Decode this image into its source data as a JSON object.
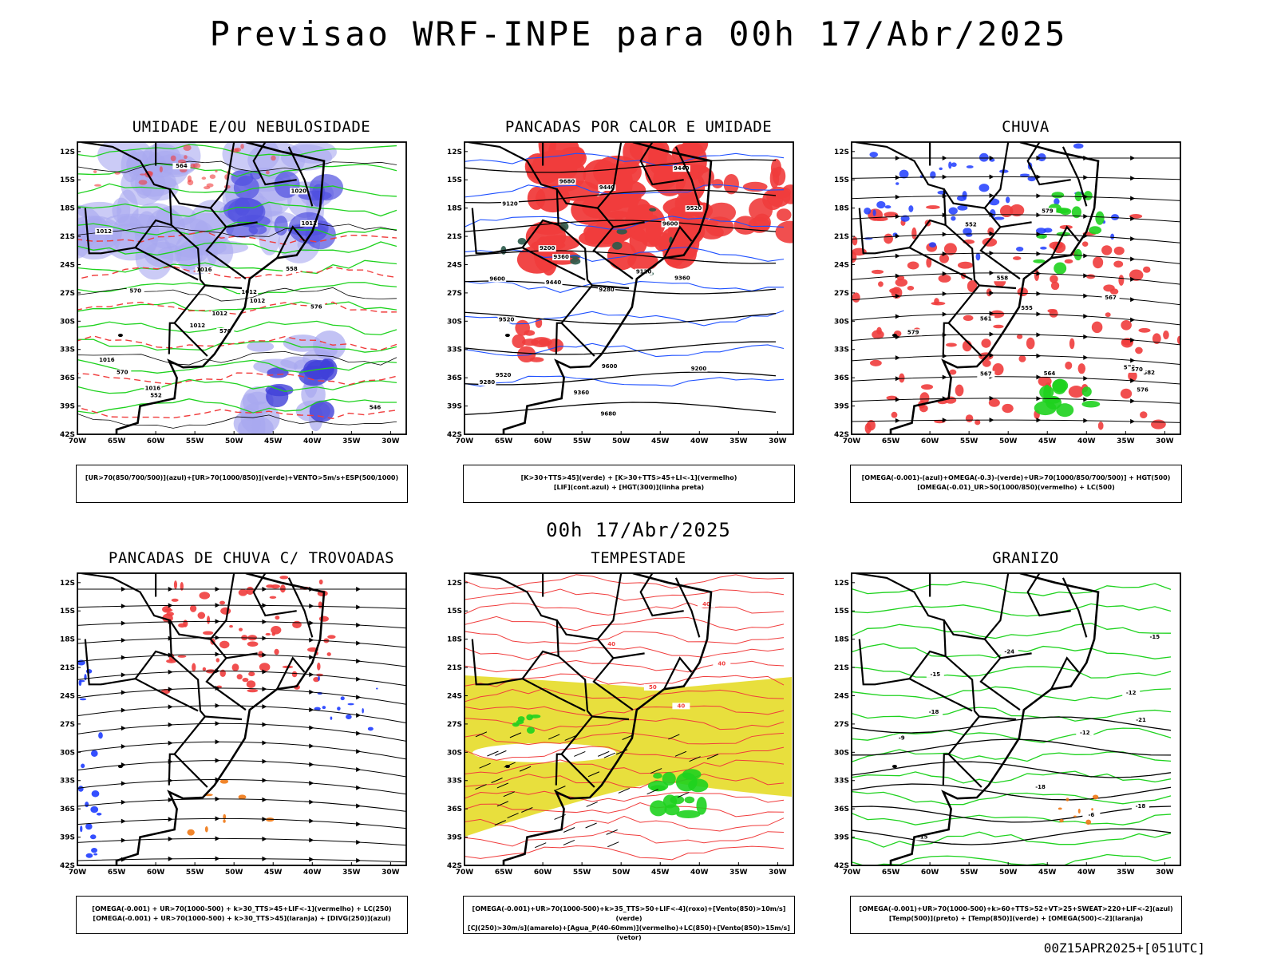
{
  "main_title": "Previsao WRF-INPE  para 00h 17/Abr/2025",
  "mid_title": "00h 17/Abr/2025",
  "footer_stamp": "00Z15APR2025+[051UTC]",
  "axes": {
    "lat_labels": [
      "12S",
      "15S",
      "18S",
      "21S",
      "24S",
      "27S",
      "30S",
      "33S",
      "36S",
      "39S",
      "42S"
    ],
    "lon_labels": [
      "70W",
      "65W",
      "60W",
      "55W",
      "50W",
      "45W",
      "40W",
      "35W",
      "30W"
    ]
  },
  "colors": {
    "blue": "#1e3cff",
    "green": "#1ed21e",
    "red": "#f03c3c",
    "orange": "#f07814",
    "yellow": "#e6dc28",
    "lavender": "#a8a8f0",
    "darkteal": "#2a5a4a"
  },
  "panels": [
    {
      "title": "UMIDADE E/OU NEBULOSIDADE",
      "caption": [
        "[UR>70(850/700/500)](azul)+[UR>70(1000/850)](verde)+VENTO>5m/s+ESP(500/1000)"
      ],
      "contour_labels": [
        "1012",
        "1012",
        "1016",
        "1020",
        "1012",
        "1012",
        "1016",
        "1016",
        "1012",
        "1012",
        "570",
        "570",
        "564",
        "558",
        "552",
        "546",
        "576",
        "570"
      ]
    },
    {
      "title": "PANCADAS POR CALOR E UMIDADE",
      "caption": [
        "[K>30+TTS>45](verde) + [K>30+TTS>45+LI<-1](vermelho)",
        "[LIF](cont.azul) + [HGT(300)](linha preta)"
      ],
      "contour_labels": [
        "9680",
        "9680",
        "9600",
        "9520",
        "9600",
        "9600",
        "9520",
        "9520",
        "9440",
        "9440",
        "9440",
        "9360",
        "9360",
        "9360",
        "9280",
        "9280",
        "9200",
        "9200",
        "9120",
        "9120"
      ]
    },
    {
      "title": "CHUVA",
      "caption": [
        "[OMEGA(-0.001)-(azul)+OMEGA(-0.3)-(verde)+UR>70(1000/850/700/500)] + HGT(500)",
        "[OMEGA(-0.01)_UR>50(1000/850)(vermelho) + LC(500)"
      ],
      "contour_labels": [
        "582",
        "579",
        "579",
        "576",
        "573",
        "570",
        "567",
        "567",
        "564",
        "561",
        "558",
        "555",
        "552"
      ]
    },
    {
      "title": "PANCADAS DE CHUVA C/ TROVOADAS",
      "caption": [
        "[OMEGA(-0.001) + UR>70(1000-500) + k>30_TTS>45+LIF<-1](vermelho) + LC(250)",
        "[OMEGA(-0.001) + UR>70(1000-500) + k>30_TTS>45](laranja) + [DIVG(250)](azul)"
      ],
      "contour_labels": []
    },
    {
      "title": "TEMPESTADE",
      "caption": [
        "[OMEGA(-0.001)+UR>70(1000-500)+k>35_TTS>50+LIF<-4](roxo)+[Vento(850)>10m/s](verde)",
        "[CJ(250)>30m/s](amarelo)+[Agua_P(40-60mm)](vermelho)+LC(850)+[Vento(850)>15m/s](vetor)"
      ],
      "contour_labels": [
        "40",
        "40",
        "50",
        "40",
        "40"
      ]
    },
    {
      "title": "GRANIZO",
      "caption": [
        "[OMEGA(-0.001)+UR>70(1000-500)+k>60+TTS>52+VT>25+SWEAT>220+LIF<-2](azul)",
        "[Temp(500)](preto) + [Temp(850)](verde) + [OMEGA(500)<-2](laranja)"
      ],
      "contour_labels": [
        "-6",
        "-9",
        "-12",
        "-12",
        "-15",
        "-15",
        "-18",
        "-18",
        "-18",
        "-21",
        "-24",
        "-15"
      ]
    }
  ]
}
